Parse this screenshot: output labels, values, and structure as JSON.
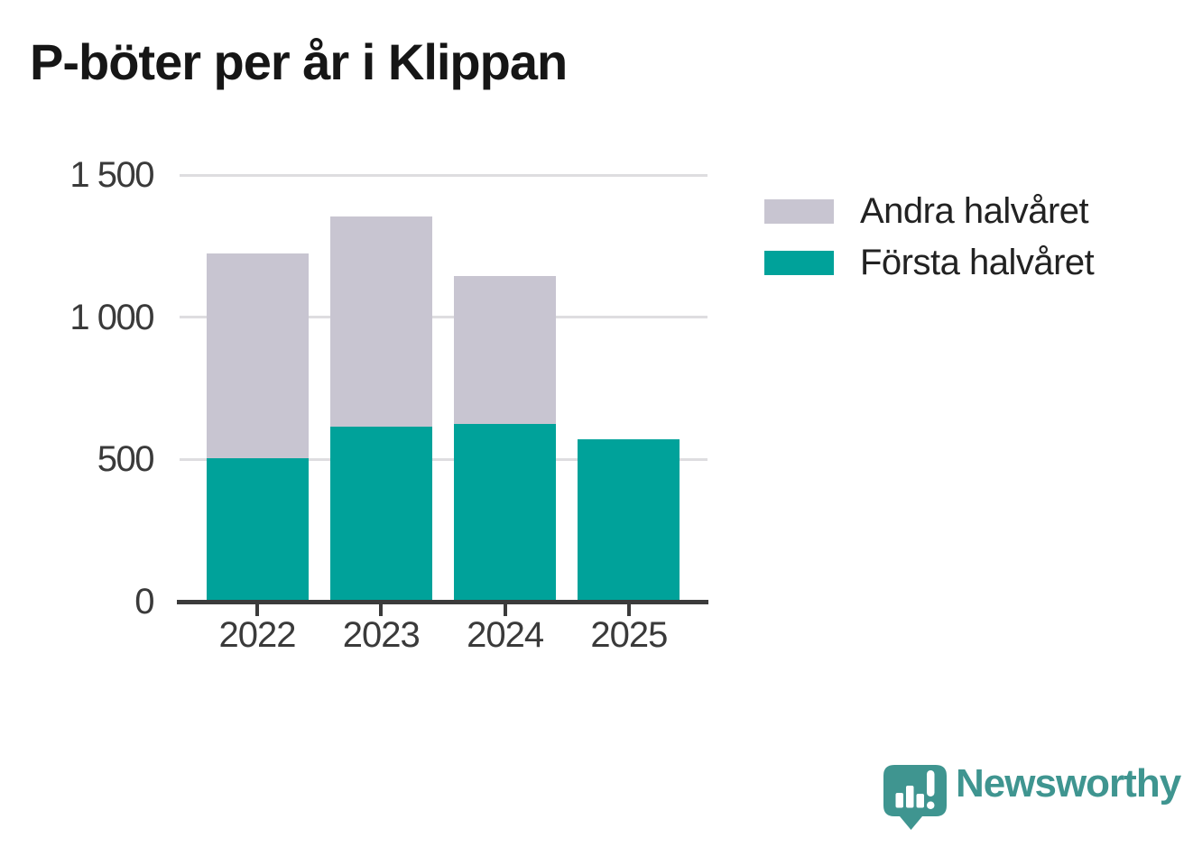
{
  "page": {
    "background": "#ffffff"
  },
  "chart_data": {
    "type": "bar",
    "stacked": true,
    "title": "P-böter per år i Klippan",
    "xlabel": "",
    "ylabel": "",
    "categories": [
      "2022",
      "2023",
      "2024",
      "2025"
    ],
    "series": [
      {
        "name": "Första halvåret",
        "color": "#00a29a",
        "values": [
          505,
          615,
          625,
          570
        ]
      },
      {
        "name": "Andra halvåret",
        "color": "#c8c5d1",
        "values": [
          720,
          740,
          520,
          0
        ]
      }
    ],
    "totals": [
      1225,
      1355,
      1145,
      570
    ],
    "legend": [
      {
        "label": "Andra halvåret",
        "color": "#c8c5d1"
      },
      {
        "label": "Första halvåret",
        "color": "#00a29a"
      }
    ],
    "legend_position": "right",
    "ylim": [
      0,
      1500
    ],
    "yticks": [
      {
        "value": 0,
        "label": "0"
      },
      {
        "value": 500,
        "label": "500"
      },
      {
        "value": 1000,
        "label": "1 000"
      },
      {
        "value": 1500,
        "label": "1 500"
      }
    ],
    "grid": "horizontal"
  },
  "branding": {
    "logo_text": "Newsworthy",
    "logo_color": "#3f9590",
    "logo_icon": "speech-bubble-bar-chart-exclamation"
  },
  "colors": {
    "axis": "#3b3b3b",
    "grid": "#dedde0",
    "tick_label": "#3a3a3a",
    "title": "#161616",
    "legend_text": "#222222"
  }
}
